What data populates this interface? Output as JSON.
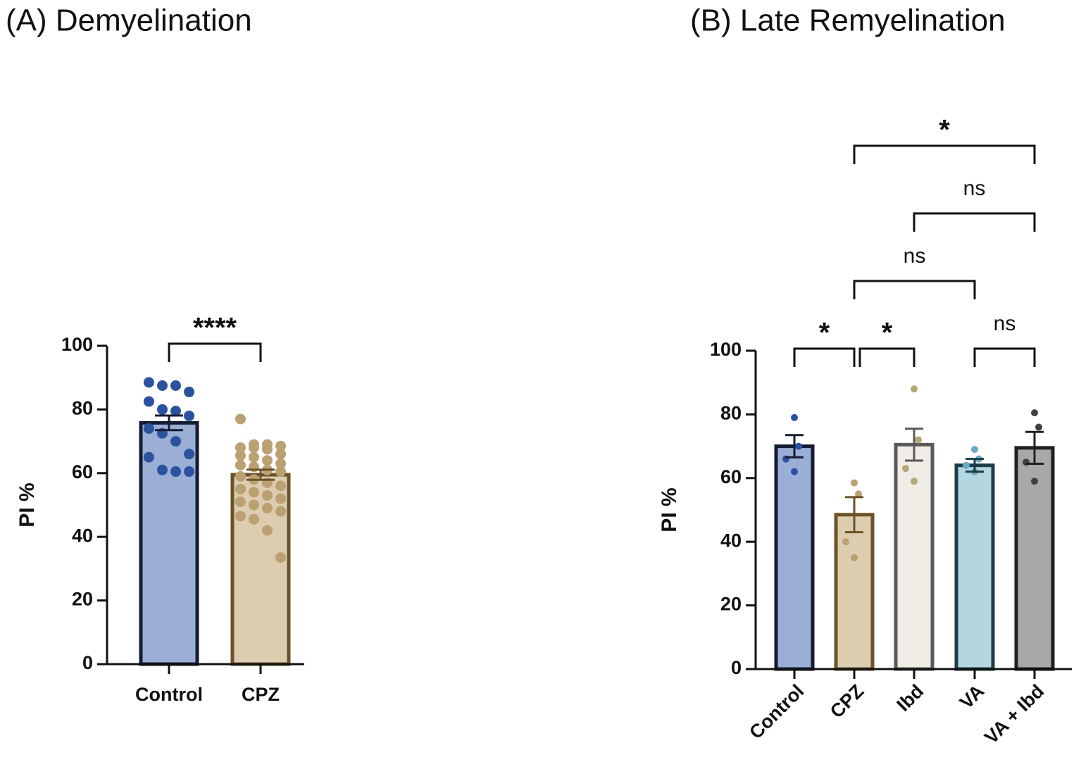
{
  "chart_data": [
    {
      "type": "bar",
      "title": "(A) Demyelination",
      "y_label": "PI %",
      "categories": [
        "Control",
        "CPZ"
      ],
      "values": [
        75.8,
        59.5
      ],
      "errors": [
        2.3,
        1.6
      ],
      "points": [
        [
          88.5,
          87.5,
          87.5,
          85.5,
          82.5,
          80,
          79.5,
          78,
          74,
          72.5,
          70,
          66,
          65,
          61,
          60.5,
          60.5
        ],
        [
          77,
          69,
          69,
          68.5,
          68,
          68,
          67.5,
          66,
          65.5,
          65,
          64,
          63,
          62.5,
          62,
          61,
          60.5,
          59,
          58,
          57,
          56,
          55,
          54,
          53,
          52,
          51,
          50,
          49,
          48,
          46.5,
          45.5,
          42,
          33.5
        ]
      ],
      "colors": [
        "#9aaed6",
        "#dccdb0"
      ],
      "edge_colors": [
        "#141c33",
        "#6b5228"
      ],
      "point_colors": [
        "#2b529e",
        "#bba071"
      ],
      "ylim": [
        0,
        100
      ],
      "yticks": [
        0,
        20,
        40,
        60,
        80,
        100
      ],
      "xtick_rotation": 0,
      "annotations": [
        {
          "pair": [
            0,
            1
          ],
          "label": "****"
        }
      ]
    },
    {
      "type": "bar",
      "title": "(B) Late Remyelination",
      "y_label": "PI %",
      "categories": [
        "Control",
        "CPZ",
        "Ibd",
        "VA",
        "VA + Ibd"
      ],
      "values": [
        70,
        48.5,
        70.5,
        64,
        69.5
      ],
      "errors": [
        3.5,
        5.5,
        5,
        2,
        5
      ],
      "points": [
        [
          79,
          70,
          66,
          62
        ],
        [
          58.5,
          55,
          40,
          35
        ],
        [
          88,
          72,
          63,
          59
        ],
        [
          69,
          66,
          64,
          62
        ],
        [
          80.5,
          76,
          65,
          59
        ]
      ],
      "colors": [
        "#9aaed6",
        "#dccdb0",
        "#f0ede6",
        "#b4d6e0",
        "#a8a8a8"
      ],
      "edge_colors": [
        "#141c33",
        "#6b5228",
        "#5a5a5a",
        "#1c3c48",
        "#202020"
      ],
      "point_colors": [
        "#2b529e",
        "#bba071",
        "#b5a878",
        "#6aaac4",
        "#404040"
      ],
      "ylim": [
        0,
        100
      ],
      "yticks": [
        0,
        20,
        40,
        60,
        80,
        100
      ],
      "xtick_rotation": -45,
      "annotations": [
        {
          "pair": [
            0,
            1
          ],
          "label": "*"
        },
        {
          "pair": [
            1,
            2
          ],
          "label": "*"
        },
        {
          "pair": [
            3,
            4
          ],
          "label": "ns"
        },
        {
          "pair": [
            1,
            3
          ],
          "label": "ns"
        },
        {
          "pair": [
            2,
            4
          ],
          "label": "ns"
        },
        {
          "pair": [
            1,
            4
          ],
          "label": "*"
        }
      ]
    }
  ]
}
